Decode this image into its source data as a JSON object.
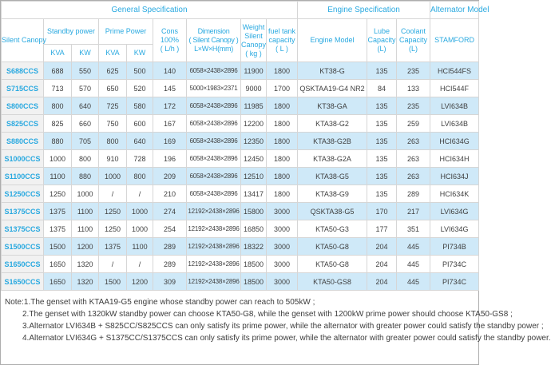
{
  "table": {
    "groups": {
      "general": "General Specification",
      "engine": "Engine Specification",
      "alternator": "Alternator Model"
    },
    "headers": {
      "silent_canopy": "Silent Canopy",
      "standby_power": "Standby power",
      "prime_power": "Prime Power",
      "kva": "KVA",
      "kw": "KW",
      "cons": [
        "Cons",
        "100%",
        "( L/h )"
      ],
      "dimension": [
        "Dimension",
        "( Silent Canopy )",
        "L×W×H(mm)"
      ],
      "weight": [
        "Weight",
        "Silent",
        "Canopy",
        "( kg )"
      ],
      "fuel_tank": [
        "fuel tank",
        "capacity",
        "( L )"
      ],
      "engine_model": "Engine Model",
      "lube_capacity": [
        "Lube",
        "Capacity",
        "(L)"
      ],
      "coolant_capacity": [
        "Coolant",
        "Capacity",
        "(L)"
      ],
      "stamford": "STAMFORD"
    },
    "rows": [
      [
        "S688CCS",
        "688",
        "550",
        "625",
        "500",
        "140",
        "6058×2438×2896",
        "11900",
        "1800",
        "KT38-G",
        "135",
        "235",
        "HCI544FS"
      ],
      [
        "S715CCS",
        "713",
        "570",
        "650",
        "520",
        "145",
        "5000×1983×2371",
        "9000",
        "1700",
        "QSKTAA19-G4 NR2",
        "84",
        "133",
        "HCI544F"
      ],
      [
        "S800CCS",
        "800",
        "640",
        "725",
        "580",
        "172",
        "6058×2438×2896",
        "11985",
        "1800",
        "KT38-GA",
        "135",
        "235",
        "LVI634B"
      ],
      [
        "S825CCS",
        "825",
        "660",
        "750",
        "600",
        "167",
        "6058×2438×2896",
        "12200",
        "1800",
        "KTA38-G2",
        "135",
        "259",
        "LVI634B"
      ],
      [
        "S880CCS",
        "880",
        "705",
        "800",
        "640",
        "169",
        "6058×2438×2896",
        "12350",
        "1800",
        "KTA38-G2B",
        "135",
        "263",
        "HCI634G"
      ],
      [
        "S1000CCS",
        "1000",
        "800",
        "910",
        "728",
        "196",
        "6058×2438×2896",
        "12450",
        "1800",
        "KTA38-G2A",
        "135",
        "263",
        "HCI634H"
      ],
      [
        "S1100CCS",
        "1100",
        "880",
        "1000",
        "800",
        "209",
        "6058×2438×2896",
        "12510",
        "1800",
        "KTA38-G5",
        "135",
        "263",
        "HCI634J"
      ],
      [
        "S1250CCS",
        "1250",
        "1000",
        "/",
        "/",
        "210",
        "6058×2438×2896",
        "13417",
        "1800",
        "KTA38-G9",
        "135",
        "289",
        "HCI634K"
      ],
      [
        "S1375CCS",
        "1375",
        "1100",
        "1250",
        "1000",
        "274",
        "12192×2438×2896",
        "15800",
        "3000",
        "QSKTA38-G5",
        "170",
        "217",
        "LVI634G"
      ],
      [
        "S1375CCS",
        "1375",
        "1100",
        "1250",
        "1000",
        "254",
        "12192×2438×2896",
        "16850",
        "3000",
        "KTA50-G3",
        "177",
        "351",
        "LVI634G"
      ],
      [
        "S1500CCS",
        "1500",
        "1200",
        "1375",
        "1100",
        "289",
        "12192×2438×2896",
        "18322",
        "3000",
        "KTA50-G8",
        "204",
        "445",
        "PI734B"
      ],
      [
        "S1650CCS",
        "1650",
        "1320",
        "/",
        "/",
        "289",
        "12192×2438×2896",
        "18500",
        "3000",
        "KTA50-G8",
        "204",
        "445",
        "PI734C"
      ],
      [
        "S1650CCS",
        "1650",
        "1320",
        "1500",
        "1200",
        "309",
        "12192×2438×2896",
        "18500",
        "3000",
        "KTA50-GS8",
        "204",
        "445",
        "PI734C"
      ]
    ],
    "tinted_row_indexes": [
      0,
      2,
      4,
      6,
      8,
      10,
      12
    ],
    "page_break_row_indexes": [
      5,
      9
    ]
  },
  "notes": {
    "lines": [
      "Note:1.The genset with KTAA19-G5 engine whose standby power can reach to 505kW ;",
      "2.The genset with 1320kW standby power can choose KTA50-G8, while the genset with 1200kW prime power should choose KTA50-GS8 ;",
      "3.Alternator LVI634B + S825CC/S825CCS can only satisfy its prime power, while the alternator with greater power could satisfy the standby power ;",
      "4.Alternator LVI634G + S1375CC/S1375CCS can only satisfy its prime power, while the alternator with greater power could satisfy the standby power."
    ]
  },
  "colors": {
    "accent_cyan": "#29a9e0",
    "row_tint": "#cfe9f8",
    "model_column_bg": "#f1f1f1",
    "grid_border": "#d6d6d6",
    "body_text": "#3f3f3f"
  }
}
